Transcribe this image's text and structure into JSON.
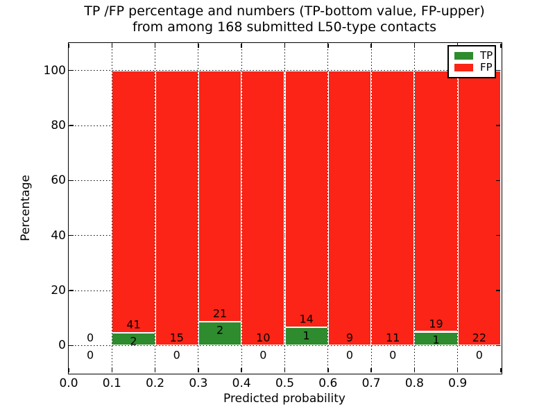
{
  "figure": {
    "title_line1": "TP /FP percentage and numbers (TP-bottom value, FP-upper)",
    "title_line2": "from among 168 submitted L50-type contacts",
    "background": "#ffffff"
  },
  "axes": {
    "xlabel": "Predicted probability",
    "ylabel": "Percentage",
    "x_tick_labels": [
      "0.0",
      "0.1",
      "0.2",
      "0.3",
      "0.4",
      "0.5",
      "0.6",
      "0.7",
      "0.8",
      "0.9"
    ],
    "y_tick_labels": [
      "0",
      "20",
      "40",
      "60",
      "80",
      "100"
    ],
    "xlim": [
      0.0,
      1.0
    ],
    "ylim": [
      -10,
      110
    ],
    "grid_style": "dotted",
    "grid_color": "#000000",
    "frame_color": "#000000"
  },
  "legend": {
    "position": "upper right",
    "items": [
      {
        "label": "TP",
        "color": "#2e8b2e"
      },
      {
        "label": "FP",
        "color": "#fb2416"
      }
    ]
  },
  "chart_data": {
    "type": "bar",
    "stacked": true,
    "normalized": "each bar scaled to 100% of bin total; green (TP) on bottom, red (FP) on top",
    "title": "TP /FP percentage and numbers (TP-bottom value, FP-upper) from among 168 submitted L50-type contacts",
    "xlabel": "Predicted probability",
    "ylabel": "Percentage",
    "xlim": [
      0.0,
      1.0
    ],
    "ylim": [
      -10,
      110
    ],
    "grid": true,
    "legend_position": "upper right",
    "total_contacts": 168,
    "bin_width": 0.1,
    "bins": [
      {
        "range": [
          0.0,
          0.1
        ],
        "tp": 0,
        "fp": 0
      },
      {
        "range": [
          0.1,
          0.2
        ],
        "tp": 2,
        "fp": 41
      },
      {
        "range": [
          0.2,
          0.3
        ],
        "tp": 0,
        "fp": 15
      },
      {
        "range": [
          0.3,
          0.4
        ],
        "tp": 2,
        "fp": 21
      },
      {
        "range": [
          0.4,
          0.5
        ],
        "tp": 0,
        "fp": 10
      },
      {
        "range": [
          0.5,
          0.6
        ],
        "tp": 1,
        "fp": 14
      },
      {
        "range": [
          0.6,
          0.7
        ],
        "tp": 0,
        "fp": 9
      },
      {
        "range": [
          0.7,
          0.8
        ],
        "tp": 0,
        "fp": 11
      },
      {
        "range": [
          0.8,
          0.9
        ],
        "tp": 1,
        "fp": 19
      },
      {
        "range": [
          0.9,
          1.0
        ],
        "tp": 0,
        "fp": 22
      }
    ],
    "series": [
      {
        "name": "TP",
        "color": "#2e8b2e",
        "counts": [
          0,
          2,
          0,
          2,
          0,
          1,
          0,
          0,
          1,
          0
        ]
      },
      {
        "name": "FP",
        "color": "#fb2416",
        "counts": [
          0,
          41,
          15,
          21,
          10,
          14,
          9,
          11,
          19,
          22
        ]
      }
    ]
  }
}
